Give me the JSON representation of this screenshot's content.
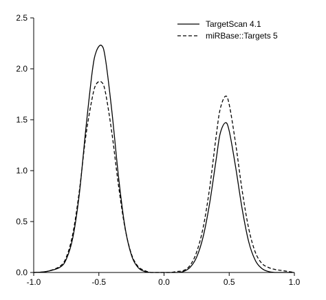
{
  "chart_data": {
    "type": "line",
    "title": "",
    "xlabel": "",
    "ylabel": "",
    "xlim": [
      -1.0,
      1.0
    ],
    "ylim": [
      0,
      2.5
    ],
    "x_ticks": [
      "-1.0",
      "-0.5",
      "0.0",
      "0.5",
      "1.0"
    ],
    "y_ticks": [
      "0.0",
      "0.5",
      "1.0",
      "1.5",
      "2.0",
      "2.5"
    ],
    "grid": false,
    "legend_position": "top-right",
    "series": [
      {
        "name": "TargetScan 4.1",
        "line_style": "solid",
        "color": "#000000",
        "x": [
          -1.0,
          -0.9,
          -0.8,
          -0.75,
          -0.7,
          -0.65,
          -0.6,
          -0.55,
          -0.52,
          -0.48,
          -0.45,
          -0.4,
          -0.35,
          -0.3,
          -0.25,
          -0.2,
          -0.15,
          -0.1,
          -0.05,
          0.0,
          0.05,
          0.1,
          0.15,
          0.2,
          0.25,
          0.3,
          0.35,
          0.4,
          0.43,
          0.47,
          0.5,
          0.55,
          0.6,
          0.65,
          0.7,
          0.75,
          0.8,
          0.85,
          0.9,
          0.95,
          1.0
        ],
        "y": [
          0.0,
          0.01,
          0.05,
          0.13,
          0.34,
          0.77,
          1.41,
          1.98,
          2.17,
          2.23,
          2.1,
          1.58,
          0.95,
          0.45,
          0.17,
          0.05,
          0.01,
          0.0,
          0.0,
          0.0,
          0.0,
          0.0,
          0.01,
          0.05,
          0.15,
          0.35,
          0.68,
          1.11,
          1.36,
          1.47,
          1.39,
          1.03,
          0.62,
          0.3,
          0.12,
          0.04,
          0.01,
          0.0,
          0.0,
          0.0,
          0.0
        ]
      },
      {
        "name": "miRBase::Targets 5",
        "line_style": "dashed",
        "color": "#000000",
        "x": [
          -1.0,
          -0.9,
          -0.8,
          -0.75,
          -0.7,
          -0.65,
          -0.6,
          -0.55,
          -0.52,
          -0.48,
          -0.45,
          -0.4,
          -0.35,
          -0.3,
          -0.25,
          -0.2,
          -0.15,
          -0.1,
          -0.05,
          0.0,
          0.05,
          0.1,
          0.15,
          0.2,
          0.25,
          0.3,
          0.35,
          0.4,
          0.43,
          0.47,
          0.5,
          0.55,
          0.6,
          0.65,
          0.7,
          0.75,
          0.8,
          0.85,
          0.9,
          0.95,
          1.0
        ],
        "y": [
          0.0,
          0.01,
          0.06,
          0.15,
          0.38,
          0.8,
          1.34,
          1.72,
          1.85,
          1.87,
          1.77,
          1.37,
          0.86,
          0.44,
          0.18,
          0.06,
          0.02,
          0.0,
          0.0,
          0.0,
          0.0,
          0.01,
          0.02,
          0.07,
          0.2,
          0.44,
          0.83,
          1.34,
          1.6,
          1.73,
          1.65,
          1.26,
          0.8,
          0.43,
          0.2,
          0.09,
          0.05,
          0.03,
          0.02,
          0.01,
          0.0
        ]
      }
    ]
  }
}
